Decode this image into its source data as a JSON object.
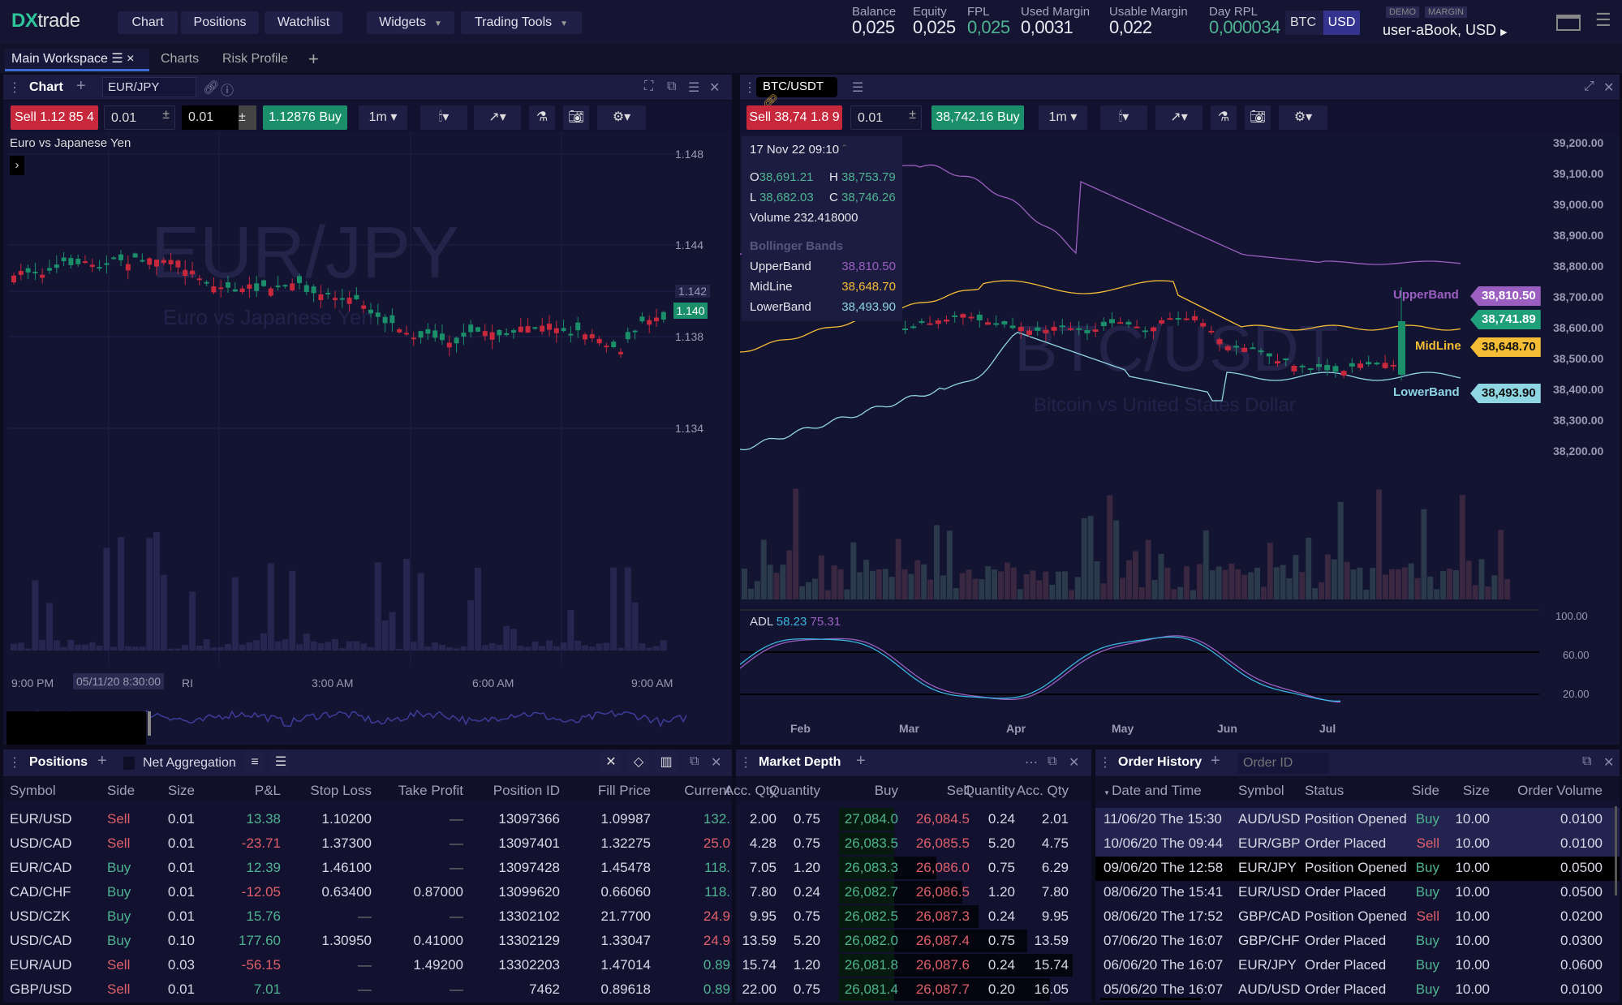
{
  "app": {
    "logo_dx": "DX",
    "logo_text": "trade"
  },
  "nav": [
    {
      "label": "Chart"
    },
    {
      "label": "Positions"
    },
    {
      "label": "Watchlist"
    },
    {
      "label": "Widgets"
    },
    {
      "label": "Trading Tools"
    }
  ],
  "stats": [
    {
      "label": "Balance",
      "value": "0,025"
    },
    {
      "label": "Equity",
      "value": "0,025"
    },
    {
      "label": "FPL",
      "value": "0,025",
      "color": "green"
    },
    {
      "label": "Used Margin",
      "value": "0,0031"
    },
    {
      "label": "Usable Margin",
      "value": "0,022"
    },
    {
      "label": "Day RPL",
      "value": "0,000034",
      "color": "green"
    }
  ],
  "currency": {
    "opt1": "BTC",
    "opt2": "USD",
    "selected": "USD"
  },
  "account": {
    "badge1": "DEMO",
    "badge2": "MARGIN",
    "name": "user-aBook, USD"
  },
  "workspace_tabs": [
    {
      "label": "Main Workspace",
      "active": true
    },
    {
      "label": "Charts"
    },
    {
      "label": "Risk Profile"
    }
  ],
  "left_chart": {
    "title": "Chart",
    "symbol": "EUR/JPY",
    "sell_label": "Sell",
    "sell_price": "1.12 85 4",
    "qty1": "0.01",
    "qty2": "0.01",
    "buy_price": "1.12876",
    "buy_label": "Buy",
    "interval": "1m",
    "description": "Euro vs Japanese Yen",
    "watermark": "EUR/JPY",
    "watermark_sub": "Euro vs Japanese Yen",
    "price_ticks": [
      "1.148",
      "1.144",
      "1.142",
      "1.138",
      "1.134"
    ],
    "current_price": "1.140",
    "time_ticks": [
      "9:00 PM",
      "3:00 AM",
      "6:00 AM",
      "9:00 AM"
    ],
    "crosshair_time": "05/11/20 8:30:00",
    "crosshair_suffix": "RI"
  },
  "right_chart": {
    "symbol": "BTC/USDT",
    "sell_label": "Sell",
    "sell_price": "38,74 1.8 9",
    "qty": "0.01",
    "buy_price": "38,742.16",
    "buy_label": "Buy",
    "interval": "1m",
    "watermark": "BTC/USDT",
    "watermark_sub": "Bitcoin vs United States Dollar",
    "legend": {
      "datetime": "17 Nov 22  09:10",
      "o_label": "O",
      "o": "38,691.21",
      "h_label": "H",
      "h": "38,753.79",
      "l_label": "L",
      "l": "38,682.03",
      "c_label": "C",
      "c": "38,746.26",
      "volume_label": "Volume",
      "volume": "232.418000",
      "indicator": "Bollinger Bands",
      "upper_label": "UpperBand",
      "upper": "38,810.50",
      "mid_label": "MidLine",
      "mid": "38,648.70",
      "lower_label": "LowerBand",
      "lower": "38,493.90"
    },
    "price_ticks": [
      "39,200.00",
      "39,100.00",
      "39,000.00",
      "38,900.00",
      "38,800.00",
      "38,700.00",
      "38,600.00",
      "38,500.00",
      "38,400.00",
      "38,300.00",
      "38,200.00"
    ],
    "last_price": "38,741.89",
    "adl": {
      "label": "ADL",
      "v1": "58.23",
      "v2": "75.31",
      "ticks": [
        "100.00",
        "60.00",
        "20.00"
      ]
    },
    "months": [
      "Feb",
      "Mar",
      "Apr",
      "May",
      "Jun",
      "Jul"
    ],
    "colors": {
      "upper": "#9a5fc0",
      "mid": "#f5bd35",
      "lower": "#8fd6e3",
      "up": "#1a8f6a",
      "down": "#c8283c"
    }
  },
  "positions": {
    "title": "Positions",
    "net_aggregation": "Net Aggregation",
    "columns": [
      "Symbol",
      "Side",
      "Size",
      "P&L",
      "Stop Loss",
      "Take Profit",
      "Position ID",
      "Fill Price",
      "Current"
    ],
    "rows": [
      [
        "EUR/USD",
        "Sell",
        "0.01",
        "13.38",
        "1.10200",
        "—",
        "13097366",
        "1.09987",
        "132."
      ],
      [
        "USD/CAD",
        "Sell",
        "0.01",
        "-23.71",
        "1.37300",
        "—",
        "13097401",
        "1.32275",
        "25.0"
      ],
      [
        "EUR/CAD",
        "Buy",
        "0.01",
        "12.39",
        "1.46100",
        "—",
        "13097428",
        "1.45478",
        "118."
      ],
      [
        "CAD/CHF",
        "Buy",
        "0.01",
        "-12.05",
        "0.63400",
        "0.87000",
        "13099620",
        "0.66060",
        "118."
      ],
      [
        "USD/CZK",
        "Buy",
        "0.01",
        "15.76",
        "—",
        "—",
        "13302102",
        "21.7700",
        "24.9"
      ],
      [
        "USD/CAD",
        "Buy",
        "0.10",
        "177.60",
        "1.30950",
        "0.41000",
        "13302129",
        "1.33047",
        "24.9"
      ],
      [
        "EUR/AUD",
        "Sell",
        "0.03",
        "-56.15",
        "—",
        "1.49200",
        "13302203",
        "1.47014",
        "0.89"
      ],
      [
        "GBP/USD",
        "Sell",
        "0.01",
        "7.01",
        "—",
        "—",
        "7462",
        "0.89618",
        "0.89"
      ]
    ],
    "current_colors": [
      "g",
      "r",
      "g",
      "g",
      "r",
      "r",
      "g",
      "g"
    ]
  },
  "market_depth": {
    "title": "Market Depth",
    "columns": [
      "Acc. Qty",
      "Quantity",
      "Buy",
      "Sell",
      "Quantity",
      "Acc. Qty"
    ],
    "rows": [
      [
        "2.00",
        "0.75",
        "27,084.0",
        "26,084.5",
        "0.24",
        "2.01"
      ],
      [
        "4.28",
        "0.75",
        "26,083.5",
        "26,085.5",
        "5.20",
        "4.75"
      ],
      [
        "7.05",
        "1.20",
        "26,083.3",
        "26,086.0",
        "0.75",
        "6.29"
      ],
      [
        "7.80",
        "0.24",
        "26,082.7",
        "26,086.5",
        "1.20",
        "7.80"
      ],
      [
        "9.95",
        "0.75",
        "26,082.5",
        "26,087.3",
        "0.24",
        "9.95"
      ],
      [
        "13.59",
        "5.20",
        "26,082.0",
        "26,087.4",
        "0.75",
        "13.59"
      ],
      [
        "15.74",
        "1.20",
        "26,081.8",
        "26,087.6",
        "0.24",
        "15.74"
      ],
      [
        "22.00",
        "0.75",
        "26,081.4",
        "26,087.7",
        "0.20",
        "16.05"
      ]
    ],
    "depth_fraction": [
      0.12,
      0.15,
      0.3,
      0.38,
      0.43,
      0.58,
      0.72,
      0.65
    ]
  },
  "order_history": {
    "title": "Order History",
    "search_placeholder": "Order ID",
    "columns": [
      "Date and Time",
      "Symbol",
      "Status",
      "Side",
      "Size",
      "Order Volume"
    ],
    "rows": [
      [
        "11/06/20 The 15:30",
        "AUD/USD",
        "Position Opened",
        "Buy",
        "10.00",
        "0.0100"
      ],
      [
        "10/06/20 The 09:44",
        "EUR/GBP",
        "Order Placed",
        "Sell",
        "10.00",
        "0.0100"
      ],
      [
        "09/06/20 The 12:58",
        "EUR/JPY",
        "Position Opened",
        "Buy",
        "10.00",
        "0.0500"
      ],
      [
        "08/06/20 The 15:41",
        "EUR/USD",
        "Order Placed",
        "Buy",
        "10.00",
        "0.0500"
      ],
      [
        "08/06/20 The 17:52",
        "GBP/CAD",
        "Position Opened",
        "Sell",
        "10.00",
        "0.0200"
      ],
      [
        "07/06/20 The 16:07",
        "GBP/CHF",
        "Order Placed",
        "Buy",
        "10.00",
        "0.0300"
      ],
      [
        "06/06/20 The 16:07",
        "EUR/JPY",
        "Order Placed",
        "Buy",
        "10.00",
        "0.0600"
      ],
      [
        "05/06/20 The 16:07",
        "AUD/USD",
        "Order Placed",
        "Buy",
        "10.00",
        "0.0100"
      ]
    ],
    "selected_row": 2
  }
}
